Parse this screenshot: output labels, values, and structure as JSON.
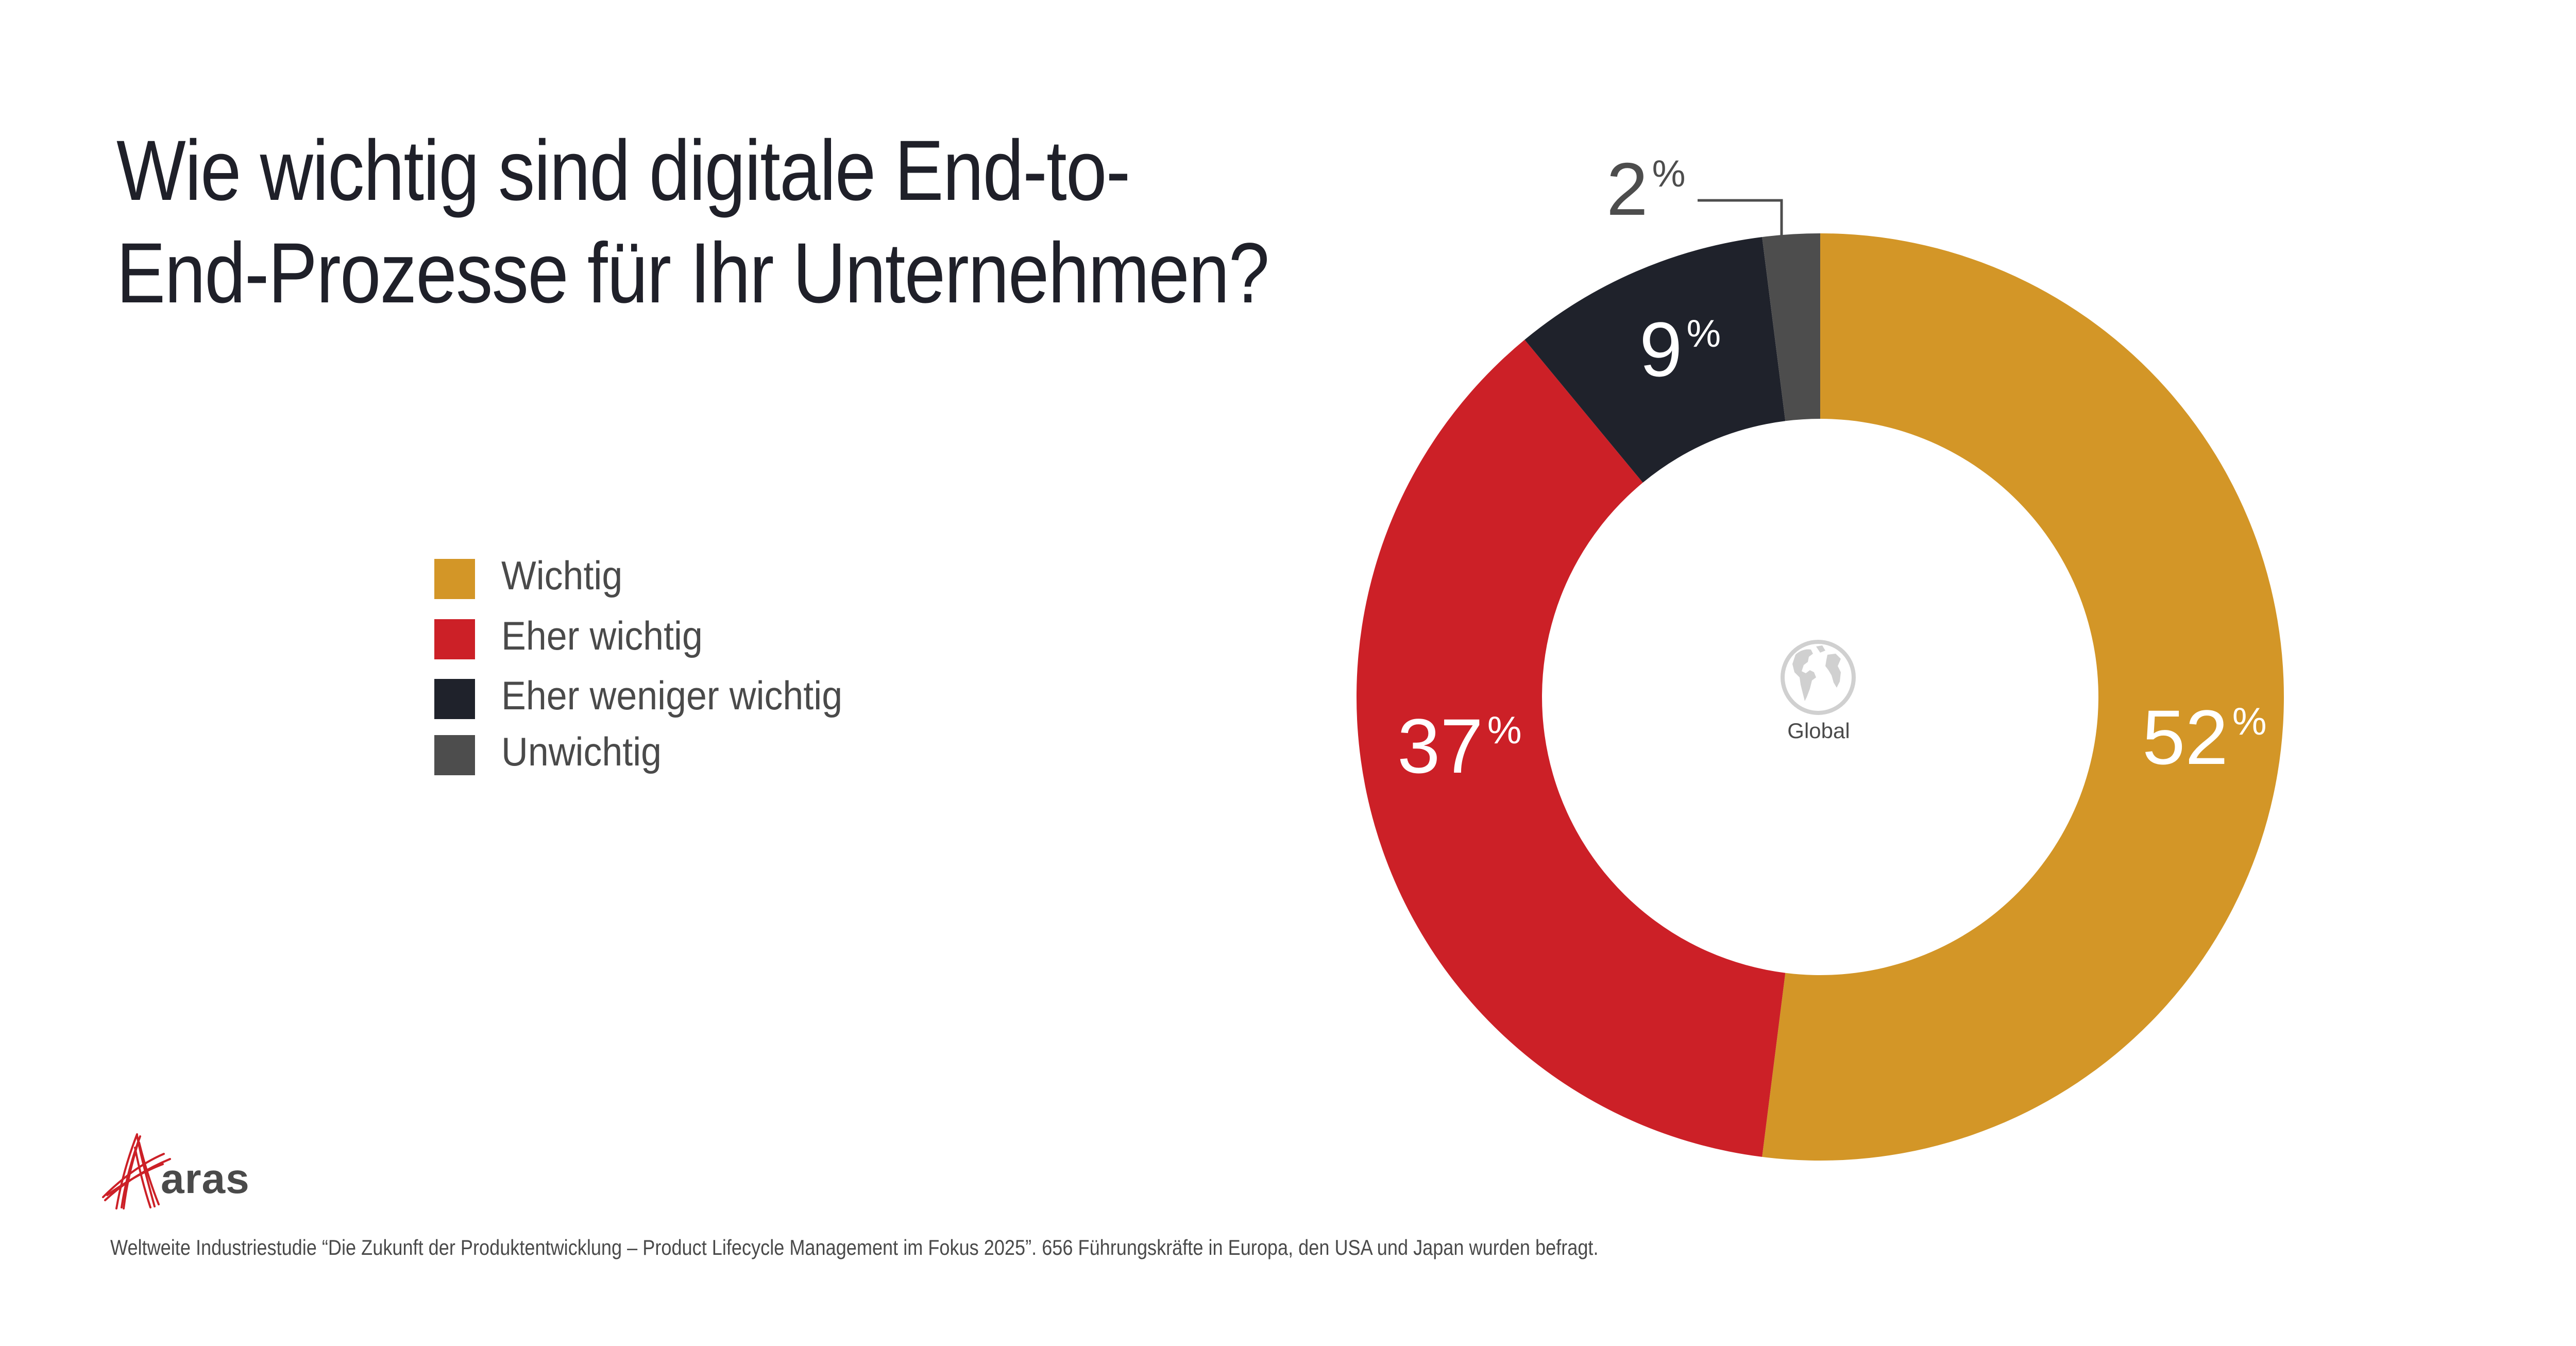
{
  "title": {
    "line1": "Wie wichtig sind digitale End-to-",
    "line2": "End-Prozesse für Ihr Unternehmen?"
  },
  "legend": [
    {
      "label": "Wichtig",
      "color": "#d39627"
    },
    {
      "label": "Eher wichtig",
      "color": "#cc2027"
    },
    {
      "label": "Eher weniger wichtig",
      "color": "#1f222b"
    },
    {
      "label": "Unwichtig",
      "color": "#4d4d4d"
    }
  ],
  "center": {
    "icon": "globe-icon",
    "label": "Global"
  },
  "logo": {
    "text": "aras",
    "icon": "aras-logo-mark",
    "color": "#cc2027"
  },
  "footnote": "Weltweite Industriestudie “Die Zukunft der Produktentwicklung – Product Lifecycle Management im Fokus 2025”. 656 Führungskräfte in Europa, den USA und Japan wurden befragt.",
  "chart_data": {
    "type": "pie",
    "variant": "donut",
    "title": "Wie wichtig sind digitale End-to-End-Prozesse für Ihr Unternehmen?",
    "center_label": "Global",
    "categories": [
      "Wichtig",
      "Eher wichtig",
      "Eher weniger wichtig",
      "Unwichtig"
    ],
    "values": [
      52,
      37,
      9,
      2
    ],
    "unit": "%",
    "data_labels": [
      "52",
      "37",
      "9",
      "2"
    ],
    "colors": [
      "#d39627",
      "#cc2027",
      "#1f222b",
      "#4d4d4d"
    ],
    "start": "top",
    "direction": "clockwise",
    "legend_position": "left"
  }
}
